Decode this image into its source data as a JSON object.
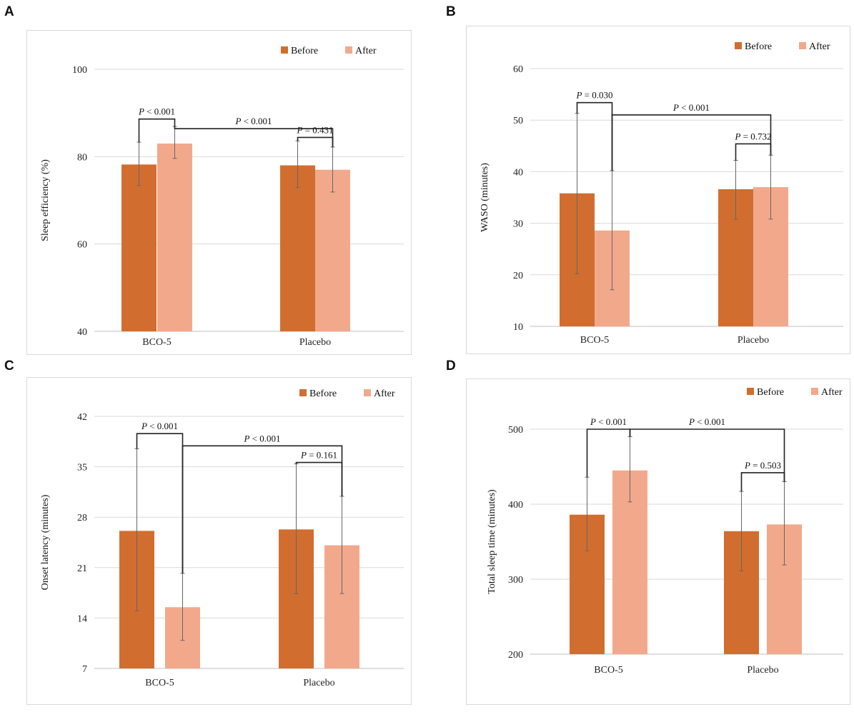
{
  "colors": {
    "before": "#d16e2f",
    "after": "#f2a98b"
  },
  "chart_data": [
    {
      "panel": "A",
      "type": "bar",
      "ylabel": "Sleep efficiency (%)",
      "categories": [
        "BCO-5",
        "Placebo"
      ],
      "legend": [
        "Before",
        "After"
      ],
      "ylim": [
        40,
        100
      ],
      "yticks": [
        40,
        60,
        80,
        100
      ],
      "series": [
        {
          "name": "Before",
          "values": [
            78.2,
            78.0
          ],
          "err_low": [
            73.4,
            72.9
          ],
          "err_high": [
            83.3,
            83.6
          ]
        },
        {
          "name": "After",
          "values": [
            83.0,
            77.0
          ],
          "err_low": [
            79.6,
            71.9
          ],
          "err_high": [
            86.9,
            82.2
          ]
        }
      ],
      "annotations": [
        {
          "text": "P < 0.001",
          "from": [
            0,
            "Before"
          ],
          "to": [
            0,
            "After"
          ],
          "level": 88.6,
          "label_x": "center"
        },
        {
          "text": "P < 0.001",
          "from": [
            0,
            "After"
          ],
          "to": [
            1,
            "After"
          ],
          "level": 86.4,
          "label_x": "center"
        },
        {
          "text": "P = 0.431",
          "from": [
            1,
            "Before"
          ],
          "to": [
            1,
            "After"
          ],
          "level": 84.4,
          "label_x": "center"
        }
      ]
    },
    {
      "panel": "B",
      "type": "bar",
      "ylabel": "WASO (minutes)",
      "categories": [
        "BCO-5",
        "Placebo"
      ],
      "legend": [
        "Before",
        "After"
      ],
      "ylim": [
        10,
        60
      ],
      "yticks": [
        10,
        20,
        30,
        40,
        50,
        60
      ],
      "series": [
        {
          "name": "Before",
          "values": [
            35.8,
            36.6
          ],
          "err_low": [
            20.2,
            30.8
          ],
          "err_high": [
            51.3,
            42.2
          ]
        },
        {
          "name": "After",
          "values": [
            28.6,
            37.0
          ],
          "err_low": [
            17.1,
            30.8
          ],
          "err_high": [
            40.2,
            43.2
          ]
        }
      ],
      "annotations": [
        {
          "text": "P = 0.030",
          "from": [
            0,
            "Before"
          ],
          "to": [
            0,
            "After"
          ],
          "level": 53.4,
          "label_x": "center"
        },
        {
          "text": "P < 0.001",
          "from": [
            0,
            "After"
          ],
          "to": [
            1,
            "After"
          ],
          "level": 51.0,
          "label_x": "center"
        },
        {
          "text": "P = 0.732",
          "from": [
            1,
            "Before"
          ],
          "to": [
            1,
            "After"
          ],
          "level": 45.4,
          "label_x": "center"
        }
      ]
    },
    {
      "panel": "C",
      "type": "bar",
      "ylabel": "Onset latency (minutes)",
      "categories": [
        "BCO-5",
        "Placebo"
      ],
      "legend": [
        "Before",
        "After"
      ],
      "ylim": [
        7,
        42
      ],
      "yticks": [
        7,
        14,
        21,
        28,
        35,
        42
      ],
      "series": [
        {
          "name": "Before",
          "values": [
            26.1,
            26.3
          ],
          "err_low": [
            15.0,
            17.4
          ],
          "err_high": [
            37.5,
            35.4
          ]
        },
        {
          "name": "After",
          "values": [
            15.5,
            24.1
          ],
          "err_low": [
            10.9,
            17.4
          ],
          "err_high": [
            20.2,
            30.9
          ]
        }
      ],
      "annotations": [
        {
          "text": "P < 0.001",
          "from": [
            0,
            "Before"
          ],
          "to": [
            0,
            "After"
          ],
          "level": 39.6,
          "label_x": "center"
        },
        {
          "text": "P < 0.001",
          "from": [
            0,
            "After"
          ],
          "to": [
            1,
            "After"
          ],
          "level": 37.9,
          "label_x": "center"
        },
        {
          "text": "P = 0.161",
          "from": [
            1,
            "Before"
          ],
          "to": [
            1,
            "After"
          ],
          "level": 35.6,
          "label_x": "center"
        }
      ]
    },
    {
      "panel": "D",
      "type": "bar",
      "ylabel": "Total sleep time (minutes)",
      "categories": [
        "BCO-5",
        "Placebo"
      ],
      "legend": [
        "Before",
        "After"
      ],
      "ylim": [
        200,
        500
      ],
      "yticks": [
        200,
        300,
        400,
        500
      ],
      "series": [
        {
          "name": "Before",
          "values": [
            386,
            364
          ],
          "err_low": [
            338,
            311
          ],
          "err_high": [
            436,
            417
          ]
        },
        {
          "name": "After",
          "values": [
            445,
            373
          ],
          "err_low": [
            403,
            319
          ],
          "err_high": [
            490,
            430
          ]
        }
      ],
      "annotations": [
        {
          "text": "P < 0.001",
          "from": [
            0,
            "Before"
          ],
          "to": [
            0,
            "After"
          ],
          "level": 500,
          "label_x": "center"
        },
        {
          "text": "P < 0.001",
          "from": [
            0,
            "After"
          ],
          "to": [
            1,
            "After"
          ],
          "level": 500,
          "label_x": "center"
        },
        {
          "text": "P = 0.503",
          "from": [
            1,
            "Before"
          ],
          "to": [
            1,
            "After"
          ],
          "level": 442,
          "label_x": "center"
        }
      ]
    }
  ]
}
